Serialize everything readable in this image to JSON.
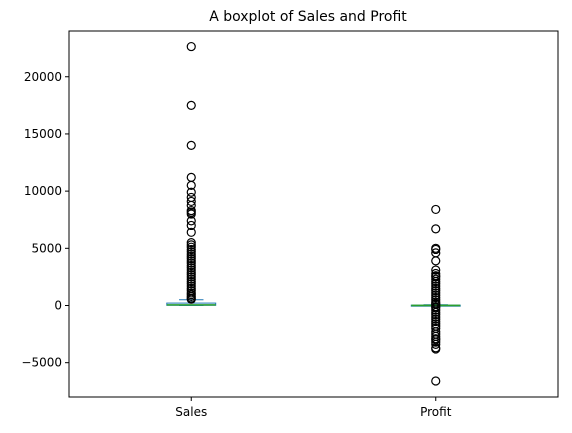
{
  "chart_data": {
    "type": "boxplot",
    "title": "A boxplot of Sales and Profit",
    "xlabel": "",
    "ylabel": "",
    "categories": [
      "Sales",
      "Profit"
    ],
    "ylim": [
      -8000,
      24000
    ],
    "yticks": [
      -5000,
      0,
      5000,
      10000,
      15000,
      20000
    ],
    "ytick_labels": [
      "−5000",
      "0",
      "5000",
      "10000",
      "15000",
      "20000"
    ],
    "grid": false,
    "boxes": [
      {
        "name": "Sales",
        "whisker_low": 0.4,
        "q1": 17,
        "median": 54,
        "q3": 210,
        "whisker_high": 500,
        "outliers": [
          22638,
          17500,
          13999,
          11200,
          10500,
          9900,
          9450,
          9100,
          8750,
          8300,
          8150,
          8000,
          7400,
          7000,
          6400,
          5500,
          5300,
          5100,
          4900,
          4700,
          4500,
          4300,
          4100,
          3900,
          3700,
          3500,
          3300,
          3100,
          2900,
          2700,
          2500,
          2300,
          2100,
          1900,
          1700,
          1500,
          1300,
          1100,
          950,
          800,
          650,
          550
        ]
      },
      {
        "name": "Profit",
        "whisker_low": -39,
        "q1": 2,
        "median": 9,
        "q3": 29,
        "whisker_high": 70,
        "outliers": [
          8400,
          6700,
          5000,
          4900,
          4600,
          3900,
          3100,
          2800,
          2600,
          2500,
          2300,
          2100,
          1900,
          1700,
          1500,
          1300,
          1100,
          900,
          700,
          500,
          300,
          150,
          100,
          -100,
          -200,
          -400,
          -600,
          -800,
          -1000,
          -1200,
          -1400,
          -1600,
          -1800,
          -2000,
          -2300,
          -2500,
          -2700,
          -2900,
          -3000,
          -3200,
          -3400,
          -3700,
          -3800,
          -6600
        ]
      }
    ],
    "colors": {
      "box": "#1f77b4",
      "median": "#2ca02c",
      "whisker": "#1f77b4",
      "outlier_edge": "#000000",
      "axis": "#000000"
    }
  }
}
